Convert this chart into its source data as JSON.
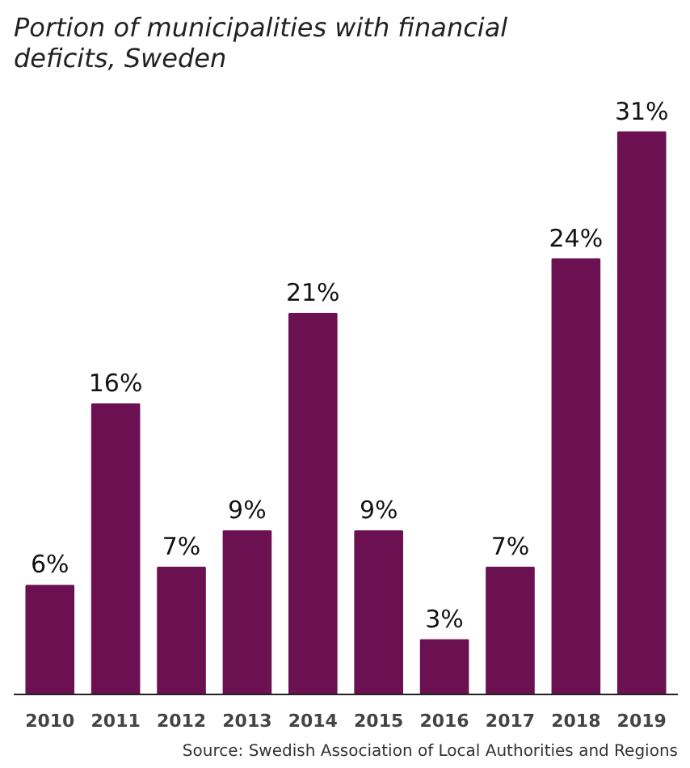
{
  "chart_data": {
    "type": "bar",
    "title": "Portion of municipalities with financial\ndeficits, Sweden",
    "categories": [
      "2010",
      "2011",
      "2012",
      "2013",
      "2014",
      "2015",
      "2016",
      "2017",
      "2018",
      "2019"
    ],
    "values": [
      6,
      16,
      7,
      9,
      21,
      9,
      3,
      7,
      24,
      31
    ],
    "value_labels": [
      "6%",
      "16%",
      "7%",
      "9%",
      "21%",
      "9%",
      "3%",
      "7%",
      "24%",
      "31%"
    ],
    "color": "#6b1152",
    "grid": false,
    "annotations": [
      "Source: Swedish Association of Local Authorities and Regions"
    ]
  }
}
